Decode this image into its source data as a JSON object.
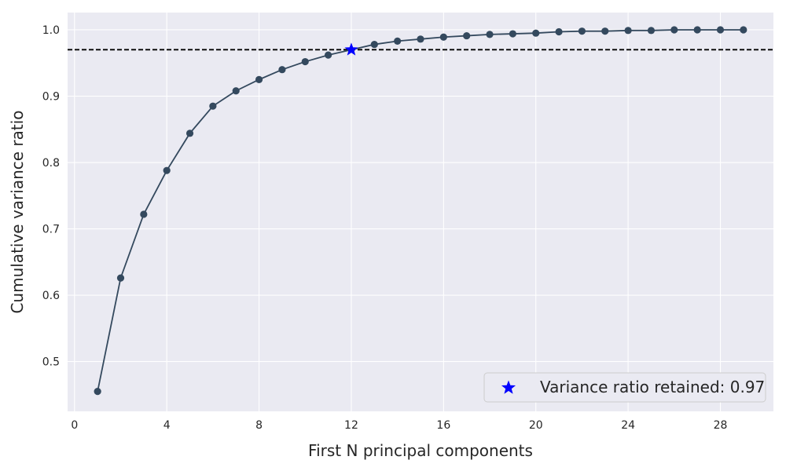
{
  "chart_data": {
    "type": "line",
    "xlabel": "First N principal components",
    "ylabel": "Cumulative variance ratio",
    "xlim": [
      -0.3,
      30.3
    ],
    "ylim": [
      0.425,
      1.026
    ],
    "xticks": [
      0,
      4,
      8,
      12,
      16,
      20,
      24,
      28
    ],
    "yticks": [
      0.5,
      0.6,
      0.7,
      0.8,
      0.9,
      1.0
    ],
    "ytick_labels": [
      "0.5",
      "0.6",
      "0.7",
      "0.8",
      "0.9",
      "1.0"
    ],
    "grid": true,
    "series": [
      {
        "x": [
          1,
          2,
          3,
          4,
          5,
          6,
          7,
          8,
          9,
          10,
          11,
          12,
          13,
          14,
          15,
          16,
          17,
          18,
          19,
          20,
          21,
          22,
          23,
          24,
          25,
          26,
          27,
          28,
          29
        ],
        "values": [
          0.455,
          0.626,
          0.722,
          0.788,
          0.844,
          0.885,
          0.908,
          0.925,
          0.94,
          0.952,
          0.962,
          0.97,
          0.978,
          0.983,
          0.986,
          0.989,
          0.991,
          0.993,
          0.994,
          0.995,
          0.997,
          0.998,
          0.998,
          0.999,
          0.999,
          1.0,
          1.0,
          1.0,
          1.0
        ],
        "color": "#34495e"
      }
    ],
    "threshold": {
      "y": 0.97,
      "style": "dashed",
      "color": "#000000"
    },
    "highlight": {
      "x": 12,
      "y": 0.97,
      "marker": "star",
      "color": "#0000ff"
    },
    "legend": {
      "position": "bottom-right",
      "label": "Variance ratio retained: 0.97"
    }
  }
}
